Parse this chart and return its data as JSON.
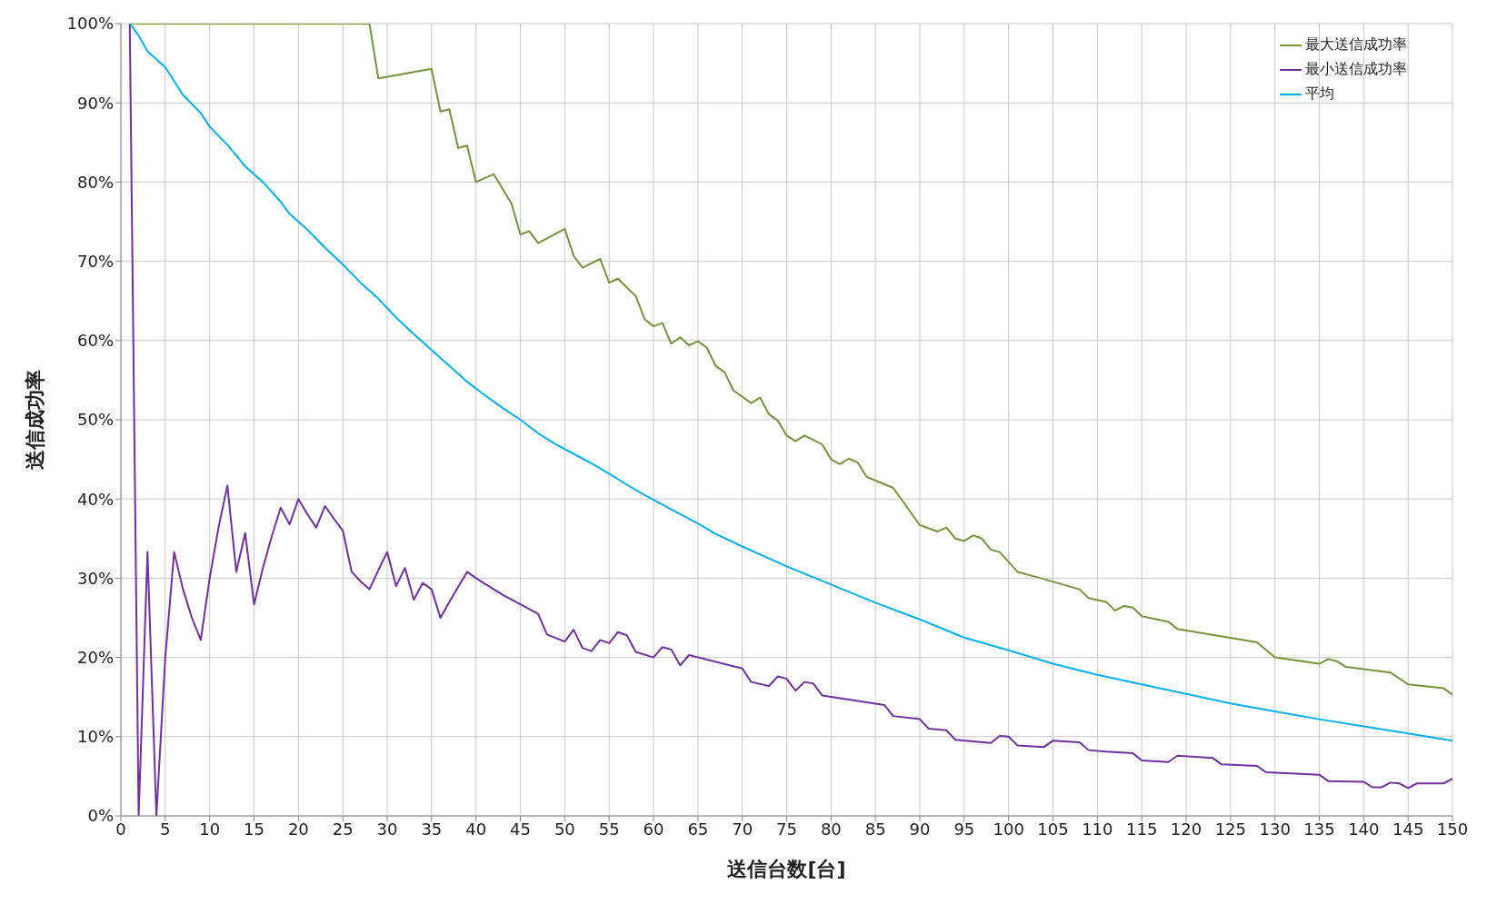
{
  "chart_data": {
    "type": "line",
    "xlabel": "送信台数[台]",
    "ylabel": "送信成功率",
    "xlim": [
      0,
      150
    ],
    "xticks": [
      0,
      5,
      10,
      15,
      20,
      25,
      30,
      35,
      40,
      45,
      50,
      55,
      60,
      65,
      70,
      75,
      80,
      85,
      90,
      95,
      100,
      105,
      110,
      115,
      120,
      125,
      130,
      135,
      140,
      145,
      150
    ],
    "ylim": [
      0,
      100
    ],
    "yticks": [
      {
        "value": 0,
        "label": "0%"
      },
      {
        "value": 10,
        "label": "10%"
      },
      {
        "value": 20,
        "label": "20%"
      },
      {
        "value": 30,
        "label": "30%"
      },
      {
        "value": 40,
        "label": "40%"
      },
      {
        "value": 50,
        "label": "50%"
      },
      {
        "value": 60,
        "label": "60%"
      },
      {
        "value": 70,
        "label": "70%"
      },
      {
        "value": 80,
        "label": "80%"
      },
      {
        "value": 90,
        "label": "90%"
      },
      {
        "value": 100,
        "label": "100%"
      }
    ],
    "grid": true,
    "legend": "top right",
    "marker": "none",
    "line_style": "solid",
    "series": [
      {
        "name": "最大送信成功率",
        "color": "#77933c",
        "x": [
          1,
          28,
          29,
          35,
          36,
          37,
          38,
          39,
          40,
          42,
          44,
          45,
          46,
          47,
          50,
          51,
          52,
          54,
          55,
          56,
          58,
          59,
          60,
          61,
          62,
          63,
          64,
          65,
          66,
          67,
          68,
          69,
          71,
          72,
          73,
          74,
          75,
          76,
          77,
          79,
          80,
          81,
          82,
          83,
          84,
          87,
          90,
          92,
          93,
          94,
          95,
          96,
          97,
          98,
          99,
          101,
          103,
          108,
          109,
          111,
          112,
          113,
          114,
          115,
          118,
          119,
          128,
          130,
          135,
          136,
          137,
          138,
          143,
          145,
          149,
          150
        ],
        "values": [
          100,
          100,
          93.1,
          94.3,
          88.9,
          89.2,
          84.3,
          84.6,
          80,
          81,
          77.3,
          73.4,
          73.8,
          72.3,
          74.1,
          70.7,
          69.2,
          70.3,
          67.3,
          67.8,
          65.6,
          62.7,
          61.8,
          62.2,
          59.6,
          60.4,
          59.4,
          59.9,
          59.1,
          56.8,
          56,
          53.7,
          52.1,
          52.8,
          50.7,
          49.9,
          48,
          47.3,
          48,
          46.9,
          45,
          44.4,
          45.1,
          44.6,
          42.8,
          41.4,
          36.7,
          35.9,
          36.4,
          35,
          34.7,
          35.4,
          35,
          33.6,
          33.3,
          30.8,
          30.2,
          28.6,
          27.5,
          27,
          25.9,
          26.5,
          26.3,
          25.2,
          24.5,
          23.6,
          21.9,
          20,
          19.2,
          19.8,
          19.5,
          18.8,
          18.1,
          16.6,
          16.1,
          15.3
        ]
      },
      {
        "name": "最小送信成功率",
        "color": "#7030a0",
        "x": [
          1,
          2,
          3,
          4,
          5,
          6,
          7,
          8,
          9,
          10,
          11,
          12,
          13,
          14,
          15,
          16,
          17,
          18,
          19,
          20,
          21,
          22,
          23,
          24,
          25,
          26,
          27,
          28,
          29,
          30,
          31,
          32,
          33,
          34,
          35,
          36,
          37,
          38,
          39,
          40,
          43,
          47,
          48,
          50,
          51,
          52,
          53,
          54,
          55,
          56,
          57,
          58,
          60,
          61,
          62,
          63,
          64,
          70,
          71,
          73,
          74,
          75,
          76,
          77,
          78,
          79,
          86,
          87,
          90,
          91,
          93,
          94,
          98,
          99,
          100,
          101,
          104,
          105,
          108,
          109,
          111,
          114,
          115,
          118,
          119,
          123,
          124,
          128,
          129,
          135,
          136,
          140,
          141,
          142,
          143,
          144,
          145,
          146,
          149,
          150
        ],
        "values": [
          100,
          0,
          33.3,
          0,
          20,
          33.3,
          28.6,
          25,
          22.2,
          30,
          36.4,
          41.7,
          30.8,
          35.7,
          26.7,
          31.3,
          35.3,
          38.9,
          36.8,
          40,
          38.1,
          36.4,
          39.1,
          37.5,
          36,
          30.8,
          29.6,
          28.6,
          31,
          33.3,
          29,
          31.3,
          27.3,
          29.4,
          28.6,
          25,
          27,
          28.9,
          30.8,
          30,
          27.9,
          25.5,
          22.9,
          22,
          23.5,
          21.2,
          20.8,
          22.2,
          21.8,
          23.2,
          22.8,
          20.7,
          20,
          21.3,
          21,
          19,
          20.3,
          18.6,
          16.9,
          16.4,
          17.6,
          17.3,
          15.8,
          16.9,
          16.7,
          15.2,
          14,
          12.6,
          12.2,
          11,
          10.8,
          9.6,
          9.2,
          10.1,
          10,
          8.9,
          8.7,
          9.5,
          9.3,
          8.3,
          8.1,
          7.9,
          7,
          6.8,
          7.6,
          7.3,
          6.5,
          6.3,
          5.5,
          5.2,
          4.4,
          4.3,
          3.6,
          3.6,
          4.2,
          4.1,
          3.5,
          4.1,
          4.1,
          4.7
        ]
      },
      {
        "name": "平均",
        "color": "#00b0f0",
        "x": [
          1,
          2,
          3,
          5,
          7,
          9,
          10,
          12,
          14,
          16,
          18,
          19,
          21,
          23,
          25,
          27,
          29,
          31,
          33,
          35,
          37,
          39,
          41,
          43,
          45,
          47,
          49,
          51,
          53,
          55,
          57,
          59,
          61,
          63,
          65,
          67,
          70,
          75,
          80,
          85,
          90,
          95,
          100,
          105,
          110,
          115,
          120,
          125,
          130,
          135,
          140,
          145,
          150
        ],
        "values": [
          100,
          98.5,
          96.5,
          94.5,
          91,
          88.7,
          87,
          84.7,
          82,
          80,
          77.5,
          76,
          74,
          71.7,
          69.6,
          67.3,
          65.3,
          62.9,
          60.8,
          58.8,
          56.8,
          54.8,
          53.1,
          51.5,
          50,
          48.3,
          46.9,
          45.7,
          44.5,
          43.2,
          41.8,
          40.5,
          39.3,
          38.1,
          36.9,
          35.6,
          34,
          31.5,
          29.2,
          26.9,
          24.8,
          22.5,
          20.9,
          19.2,
          17.8,
          16.6,
          15.4,
          14.2,
          13.2,
          12.2,
          11.3,
          10.4,
          9.5
        ]
      }
    ]
  }
}
